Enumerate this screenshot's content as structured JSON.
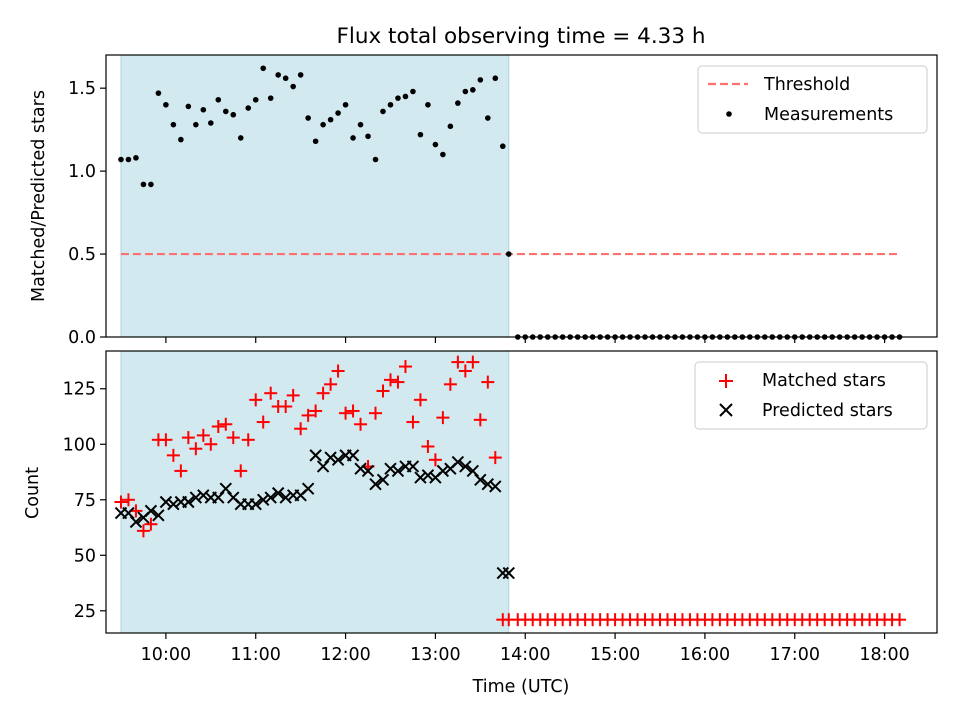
{
  "figure": {
    "title": "Flux total observing time = 4.33 h",
    "xlabel": "Time (UTC)",
    "x_ticks": [
      "10:00",
      "11:00",
      "12:00",
      "13:00",
      "14:00",
      "15:00",
      "16:00",
      "17:00",
      "18:00"
    ],
    "observing_window": [
      "09:30",
      "13:49"
    ],
    "colors": {
      "window": "#d3e9f0",
      "window_edge": "#a9d4e2",
      "threshold": "#ff7070",
      "measurements": "#000000",
      "matched": "#ff0000",
      "predicted": "#000000"
    }
  },
  "chart_data": [
    {
      "type": "scatter",
      "panel": "top",
      "ylabel": "Matched/Predicted stars",
      "xlim": [
        "09:20",
        "18:35"
      ],
      "ylim": [
        0,
        1.7
      ],
      "y_ticks": [
        "0.0",
        "0.5",
        "1.0",
        "1.5"
      ],
      "y_tick_values": [
        0,
        0.5,
        1.0,
        1.5
      ],
      "legend": {
        "position": "top-right",
        "entries": [
          "Threshold",
          "Measurements"
        ]
      },
      "threshold": {
        "name": "Threshold",
        "value": 0.5,
        "x_range": [
          "09:30",
          "18:10"
        ],
        "style": "dashed"
      },
      "series": [
        {
          "name": "Measurements",
          "x": [
            "09:30",
            "09:35",
            "09:40",
            "09:45",
            "09:50",
            "09:55",
            "10:00",
            "10:05",
            "10:10",
            "10:15",
            "10:20",
            "10:25",
            "10:30",
            "10:35",
            "10:40",
            "10:45",
            "10:50",
            "10:55",
            "11:00",
            "11:05",
            "11:10",
            "11:15",
            "11:20",
            "11:25",
            "11:30",
            "11:35",
            "11:40",
            "11:45",
            "11:50",
            "11:55",
            "12:00",
            "12:05",
            "12:10",
            "12:15",
            "12:20",
            "12:25",
            "12:30",
            "12:35",
            "12:40",
            "12:45",
            "12:50",
            "12:55",
            "13:00",
            "13:05",
            "13:10",
            "13:15",
            "13:20",
            "13:25",
            "13:30",
            "13:35",
            "13:40",
            "13:45",
            "13:49",
            "13:55",
            "14:00",
            "14:05",
            "14:10",
            "14:15",
            "14:20",
            "14:25",
            "14:30",
            "14:35",
            "14:40",
            "14:45",
            "14:50",
            "14:55",
            "15:00",
            "15:05",
            "15:10",
            "15:15",
            "15:20",
            "15:25",
            "15:30",
            "15:35",
            "15:40",
            "15:45",
            "15:50",
            "15:55",
            "16:00",
            "16:05",
            "16:10",
            "16:15",
            "16:20",
            "16:25",
            "16:30",
            "16:35",
            "16:40",
            "16:45",
            "16:50",
            "16:55",
            "17:00",
            "17:05",
            "17:10",
            "17:15",
            "17:20",
            "17:25",
            "17:30",
            "17:35",
            "17:40",
            "17:45",
            "17:50",
            "17:55",
            "18:00",
            "18:05",
            "18:10"
          ],
          "y": [
            1.07,
            1.07,
            1.08,
            0.92,
            0.92,
            1.47,
            1.4,
            1.28,
            1.19,
            1.39,
            1.28,
            1.37,
            1.29,
            1.43,
            1.36,
            1.34,
            1.2,
            1.38,
            1.43,
            1.62,
            1.44,
            1.58,
            1.56,
            1.51,
            1.58,
            1.32,
            1.18,
            1.28,
            1.31,
            1.35,
            1.4,
            1.2,
            1.28,
            1.21,
            1.07,
            1.36,
            1.4,
            1.44,
            1.45,
            1.48,
            1.22,
            1.4,
            1.16,
            1.1,
            1.27,
            1.41,
            1.48,
            1.49,
            1.55,
            1.32,
            1.56,
            1.15,
            0.5,
            0,
            0,
            0,
            0,
            0,
            0,
            0,
            0,
            0,
            0,
            0,
            0,
            0,
            0,
            0,
            0,
            0,
            0,
            0,
            0,
            0,
            0,
            0,
            0,
            0,
            0,
            0,
            0,
            0,
            0,
            0,
            0,
            0,
            0,
            0,
            0,
            0,
            0,
            0,
            0,
            0,
            0,
            0,
            0,
            0,
            0,
            0,
            0,
            0,
            0,
            0,
            0
          ]
        }
      ]
    },
    {
      "type": "scatter",
      "panel": "bottom",
      "ylabel": "Count",
      "xlim": [
        "09:20",
        "18:35"
      ],
      "ylim": [
        15,
        142
      ],
      "y_ticks": [
        "25",
        "50",
        "75",
        "100",
        "125"
      ],
      "y_tick_values": [
        25,
        50,
        75,
        100,
        125
      ],
      "legend": {
        "position": "top-right",
        "entries": [
          "Matched stars",
          "Predicted stars"
        ]
      },
      "series": [
        {
          "name": "Matched stars",
          "marker": "+",
          "x": [
            "09:30",
            "09:35",
            "09:40",
            "09:45",
            "09:50",
            "09:55",
            "10:00",
            "10:05",
            "10:10",
            "10:15",
            "10:20",
            "10:25",
            "10:30",
            "10:35",
            "10:40",
            "10:45",
            "10:50",
            "10:55",
            "11:00",
            "11:05",
            "11:10",
            "11:15",
            "11:20",
            "11:25",
            "11:30",
            "11:35",
            "11:40",
            "11:45",
            "11:50",
            "11:55",
            "12:00",
            "12:05",
            "12:10",
            "12:15",
            "12:20",
            "12:25",
            "12:30",
            "12:35",
            "12:40",
            "12:45",
            "12:50",
            "12:55",
            "13:00",
            "13:05",
            "13:10",
            "13:15",
            "13:20",
            "13:25",
            "13:30",
            "13:35",
            "13:40",
            "13:45",
            "13:49",
            "13:55",
            "14:00",
            "14:05",
            "14:10",
            "14:15",
            "14:20",
            "14:25",
            "14:30",
            "14:35",
            "14:40",
            "14:45",
            "14:50",
            "14:55",
            "15:00",
            "15:05",
            "15:10",
            "15:15",
            "15:20",
            "15:25",
            "15:30",
            "15:35",
            "15:40",
            "15:45",
            "15:50",
            "15:55",
            "16:00",
            "16:05",
            "16:10",
            "16:15",
            "16:20",
            "16:25",
            "16:30",
            "16:35",
            "16:40",
            "16:45",
            "16:50",
            "16:55",
            "17:00",
            "17:05",
            "17:10",
            "17:15",
            "17:20",
            "17:25",
            "17:30",
            "17:35",
            "17:40",
            "17:45",
            "17:50",
            "17:55",
            "18:00",
            "18:05",
            "18:10"
          ],
          "y": [
            74,
            75,
            70,
            61,
            64,
            102,
            102,
            95,
            88,
            103,
            98,
            104,
            100,
            108,
            109,
            103,
            88,
            102,
            120,
            110,
            123,
            117,
            117,
            122,
            107,
            113,
            115,
            123,
            127,
            133,
            114,
            115,
            109,
            90,
            114,
            124,
            129,
            128,
            135,
            110,
            120,
            99,
            93,
            112,
            127,
            137,
            133,
            137,
            111,
            128,
            94,
            21,
            21,
            21,
            21,
            21,
            21,
            21,
            21,
            21,
            21,
            21,
            21,
            21,
            21,
            21,
            21,
            21,
            21,
            21,
            21,
            21,
            21,
            21,
            21,
            21,
            21,
            21,
            21,
            21,
            21,
            21,
            21,
            21,
            21,
            21,
            21,
            21,
            21,
            21,
            21,
            21,
            21,
            21,
            21,
            21,
            21,
            21,
            21,
            21,
            21,
            21,
            21,
            21,
            21
          ]
        },
        {
          "name": "Predicted stars",
          "marker": "x",
          "x": [
            "09:30",
            "09:35",
            "09:40",
            "09:45",
            "09:50",
            "09:55",
            "10:00",
            "10:05",
            "10:10",
            "10:15",
            "10:20",
            "10:25",
            "10:30",
            "10:35",
            "10:40",
            "10:45",
            "10:50",
            "10:55",
            "11:00",
            "11:05",
            "11:10",
            "11:15",
            "11:20",
            "11:25",
            "11:30",
            "11:35",
            "11:40",
            "11:45",
            "11:50",
            "11:55",
            "12:00",
            "12:05",
            "12:10",
            "12:15",
            "12:20",
            "12:25",
            "12:30",
            "12:35",
            "12:40",
            "12:45",
            "12:50",
            "12:55",
            "13:00",
            "13:05",
            "13:10",
            "13:15",
            "13:20",
            "13:25",
            "13:30",
            "13:35",
            "13:40",
            "13:45",
            "13:49"
          ],
          "y": [
            69,
            69,
            65,
            67,
            70,
            68,
            74,
            73,
            74,
            74,
            76,
            77,
            76,
            76,
            80,
            76,
            73,
            73,
            73,
            75,
            76,
            78,
            76,
            77,
            77,
            80,
            95,
            90,
            94,
            93,
            95,
            95,
            89,
            88,
            82,
            84,
            89,
            88,
            90,
            90,
            85,
            86,
            85,
            88,
            89,
            92,
            90,
            88,
            84,
            82,
            81,
            42,
            42
          ]
        }
      ]
    }
  ]
}
